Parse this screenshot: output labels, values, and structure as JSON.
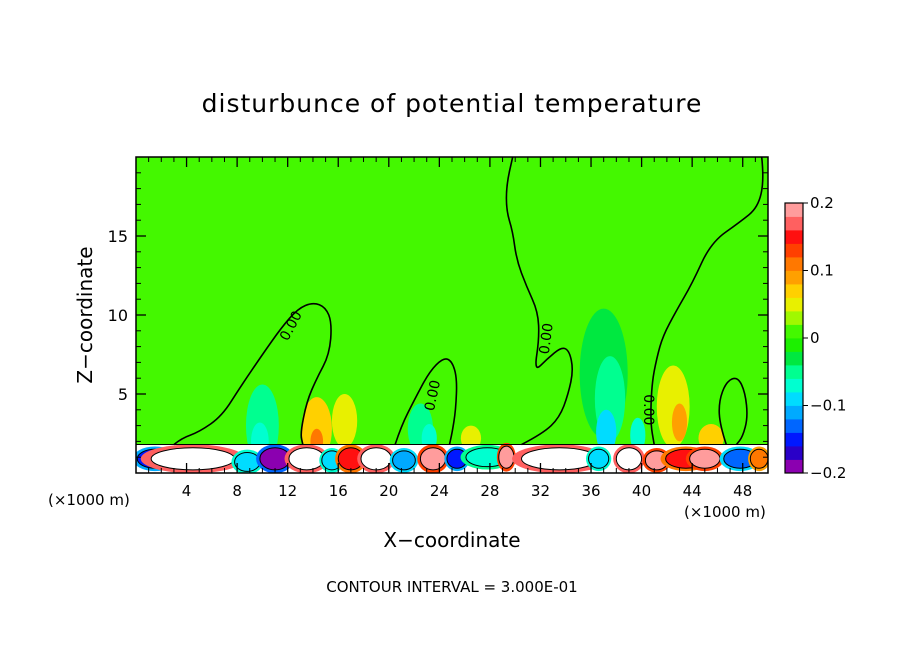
{
  "chart_data": {
    "type": "heatmap",
    "title": "disturbunce of potential temperature",
    "xlabel": "X−coordinate",
    "ylabel": "Z−coordinate",
    "x_unit": "(×1000 m)",
    "x_unit_right": "(×1000 m)",
    "xlim": [
      0,
      50
    ],
    "ylim": [
      0,
      20
    ],
    "x_ticks": [
      4,
      8,
      12,
      16,
      20,
      24,
      28,
      32,
      36,
      40,
      44,
      48
    ],
    "y_ticks": [
      5,
      10,
      15
    ],
    "colorbar": {
      "range": [
        -0.2,
        0.2
      ],
      "tick_values": [
        0.2,
        0.1,
        0,
        -0.1,
        -0.2
      ],
      "tick_labels": [
        "0.2",
        "0.1",
        "0",
        "−0.1",
        "−0.2"
      ],
      "colors": [
        "#8b00b0",
        "#2a00c8",
        "#0018ff",
        "#0066ff",
        "#00aaff",
        "#00dcff",
        "#00ffd0",
        "#00ff90",
        "#00e840",
        "#1cf000",
        "#44f800",
        "#a0f800",
        "#e8f000",
        "#ffd000",
        "#ffa000",
        "#ff7800",
        "#ff4000",
        "#ff1010",
        "#ff6060",
        "#ff9c9c"
      ]
    },
    "background_value": 0.02,
    "contour_labels": [
      {
        "text": "0.00",
        "x": 12.3,
        "z": 9.3,
        "angle": -62
      },
      {
        "text": "0.00",
        "x": 23.5,
        "z": 4.9,
        "angle": -78
      },
      {
        "text": "0.00",
        "x": 32.5,
        "z": 8.5,
        "angle": -82
      },
      {
        "text": "0.00",
        "x": 40.5,
        "z": 4.0,
        "angle": 90
      }
    ],
    "contour_lines": [
      [
        [
          3.0,
          1.8
        ],
        [
          3.6,
          2.2
        ],
        [
          5.0,
          2.6
        ],
        [
          6.8,
          3.6
        ],
        [
          8.3,
          5.5
        ],
        [
          10.0,
          7.5
        ],
        [
          11.5,
          9.2
        ],
        [
          12.8,
          10.4
        ],
        [
          14.0,
          10.8
        ],
        [
          15.0,
          10.5
        ],
        [
          15.5,
          9.5
        ],
        [
          15.3,
          7.5
        ],
        [
          14.3,
          6.0
        ],
        [
          13.5,
          4.5
        ],
        [
          13.0,
          2.5
        ],
        [
          13.2,
          1.8
        ]
      ],
      [
        [
          20.5,
          1.8
        ],
        [
          21.0,
          3.0
        ],
        [
          22.0,
          4.6
        ],
        [
          23.2,
          6.4
        ],
        [
          24.3,
          7.3
        ],
        [
          25.0,
          7.1
        ],
        [
          25.4,
          6.0
        ],
        [
          25.3,
          4.0
        ],
        [
          25.0,
          2.5
        ],
        [
          24.8,
          1.8
        ]
      ],
      [
        [
          30.5,
          1.8
        ],
        [
          32.2,
          2.5
        ],
        [
          33.5,
          3.5
        ],
        [
          34.2,
          5.0
        ],
        [
          34.6,
          6.5
        ],
        [
          34.3,
          7.7
        ],
        [
          33.7,
          8.0
        ],
        [
          32.5,
          7.2
        ],
        [
          31.5,
          6.4
        ],
        [
          31.9,
          8.5
        ],
        [
          31.8,
          10.2
        ],
        [
          30.9,
          11.8
        ],
        [
          30.1,
          13.5
        ],
        [
          29.8,
          15.3
        ],
        [
          29.3,
          16.6
        ],
        [
          29.3,
          18.2
        ],
        [
          29.8,
          20.0
        ]
      ],
      [
        [
          49.5,
          20.0
        ],
        [
          49.7,
          18.5
        ],
        [
          49.2,
          16.8
        ],
        [
          47.8,
          15.9
        ],
        [
          45.5,
          14.6
        ],
        [
          44.0,
          12.0
        ],
        [
          42.7,
          10.2
        ],
        [
          41.7,
          8.7
        ],
        [
          41.2,
          7.3
        ],
        [
          40.8,
          5.6
        ],
        [
          40.7,
          3.2
        ],
        [
          41.0,
          1.8
        ]
      ],
      [
        [
          46.7,
          1.8
        ],
        [
          46.2,
          3.0
        ],
        [
          46.1,
          4.5
        ],
        [
          46.7,
          5.8
        ],
        [
          47.6,
          6.1
        ],
        [
          48.2,
          5.1
        ],
        [
          48.4,
          3.5
        ],
        [
          48.0,
          2.3
        ],
        [
          47.5,
          1.8
        ]
      ]
    ],
    "anomalies": [
      {
        "x": 10.0,
        "z": 3.0,
        "rx": 1.3,
        "rz": 2.6,
        "value": -0.04
      },
      {
        "x": 9.8,
        "z": 2.0,
        "rx": 0.7,
        "rz": 1.2,
        "value": -0.07
      },
      {
        "x": 14.3,
        "z": 2.8,
        "rx": 1.2,
        "rz": 2.0,
        "value": 0.06
      },
      {
        "x": 14.3,
        "z": 2.0,
        "rx": 0.5,
        "rz": 0.8,
        "value": 0.1
      },
      {
        "x": 16.5,
        "z": 3.3,
        "rx": 1.0,
        "rz": 1.7,
        "value": 0.05
      },
      {
        "x": 22.5,
        "z": 2.8,
        "rx": 1.0,
        "rz": 1.6,
        "value": -0.04
      },
      {
        "x": 23.2,
        "z": 2.2,
        "rx": 0.6,
        "rz": 0.9,
        "value": -0.07
      },
      {
        "x": 26.5,
        "z": 2.2,
        "rx": 0.8,
        "rz": 0.8,
        "value": 0.05
      },
      {
        "x": 37.0,
        "z": 6.3,
        "rx": 1.9,
        "rz": 4.1,
        "value": -0.03
      },
      {
        "x": 37.5,
        "z": 4.7,
        "rx": 1.2,
        "rz": 2.7,
        "value": -0.06
      },
      {
        "x": 37.2,
        "z": 2.6,
        "rx": 0.8,
        "rz": 1.4,
        "value": -0.09
      },
      {
        "x": 39.7,
        "z": 2.4,
        "rx": 0.6,
        "rz": 1.1,
        "value": -0.07
      },
      {
        "x": 42.5,
        "z": 4.2,
        "rx": 1.3,
        "rz": 2.6,
        "value": 0.05
      },
      {
        "x": 43.0,
        "z": 3.2,
        "rx": 0.6,
        "rz": 1.2,
        "value": 0.09
      },
      {
        "x": 45.5,
        "z": 2.2,
        "rx": 1.0,
        "rz": 0.9,
        "value": 0.06
      }
    ],
    "surface_layer": {
      "z_top": 1.8,
      "blobs": [
        {
          "x": 1.5,
          "z": 0.9,
          "rx": 1.4,
          "rz": 0.6,
          "value": -0.15
        },
        {
          "x": 4.5,
          "z": 0.9,
          "rx": 3.3,
          "rz": 0.7,
          "value": 0.25
        },
        {
          "x": 8.8,
          "z": 0.7,
          "rx": 1.0,
          "rz": 0.6,
          "value": -0.09
        },
        {
          "x": 11.0,
          "z": 0.9,
          "rx": 1.2,
          "rz": 0.7,
          "value": -0.19
        },
        {
          "x": 13.5,
          "z": 0.9,
          "rx": 1.4,
          "rz": 0.7,
          "value": 0.25
        },
        {
          "x": 15.5,
          "z": 0.8,
          "rx": 0.8,
          "rz": 0.6,
          "value": -0.1
        },
        {
          "x": 17.0,
          "z": 0.9,
          "rx": 1.0,
          "rz": 0.7,
          "value": 0.15
        },
        {
          "x": 19.0,
          "z": 0.9,
          "rx": 1.2,
          "rz": 0.7,
          "value": 0.25
        },
        {
          "x": 21.2,
          "z": 0.8,
          "rx": 0.9,
          "rz": 0.6,
          "value": -0.12
        },
        {
          "x": 23.5,
          "z": 0.9,
          "rx": 1.0,
          "rz": 0.7,
          "value": 0.18
        },
        {
          "x": 25.4,
          "z": 0.9,
          "rx": 0.8,
          "rz": 0.6,
          "value": -0.16
        },
        {
          "x": 27.8,
          "z": 1.0,
          "rx": 1.7,
          "rz": 0.6,
          "value": -0.08
        },
        {
          "x": 29.3,
          "z": 1.0,
          "rx": 0.6,
          "rz": 0.7,
          "value": 0.18
        },
        {
          "x": 33.5,
          "z": 0.9,
          "rx": 3.0,
          "rz": 0.7,
          "value": 0.25
        },
        {
          "x": 36.6,
          "z": 0.9,
          "rx": 0.8,
          "rz": 0.6,
          "value": -0.1
        },
        {
          "x": 39.0,
          "z": 0.9,
          "rx": 1.0,
          "rz": 0.7,
          "value": 0.25
        },
        {
          "x": 41.2,
          "z": 0.8,
          "rx": 0.9,
          "rz": 0.6,
          "value": 0.2
        },
        {
          "x": 43.5,
          "z": 0.9,
          "rx": 1.6,
          "rz": 0.6,
          "value": 0.15
        },
        {
          "x": 45.0,
          "z": 0.9,
          "rx": 1.2,
          "rz": 0.6,
          "value": 0.2
        },
        {
          "x": 47.8,
          "z": 0.9,
          "rx": 1.3,
          "rz": 0.6,
          "value": -0.14
        },
        {
          "x": 49.3,
          "z": 0.9,
          "rx": 0.7,
          "rz": 0.6,
          "value": 0.12
        }
      ]
    },
    "footer": "CONTOUR INTERVAL = 3.000E-01"
  }
}
